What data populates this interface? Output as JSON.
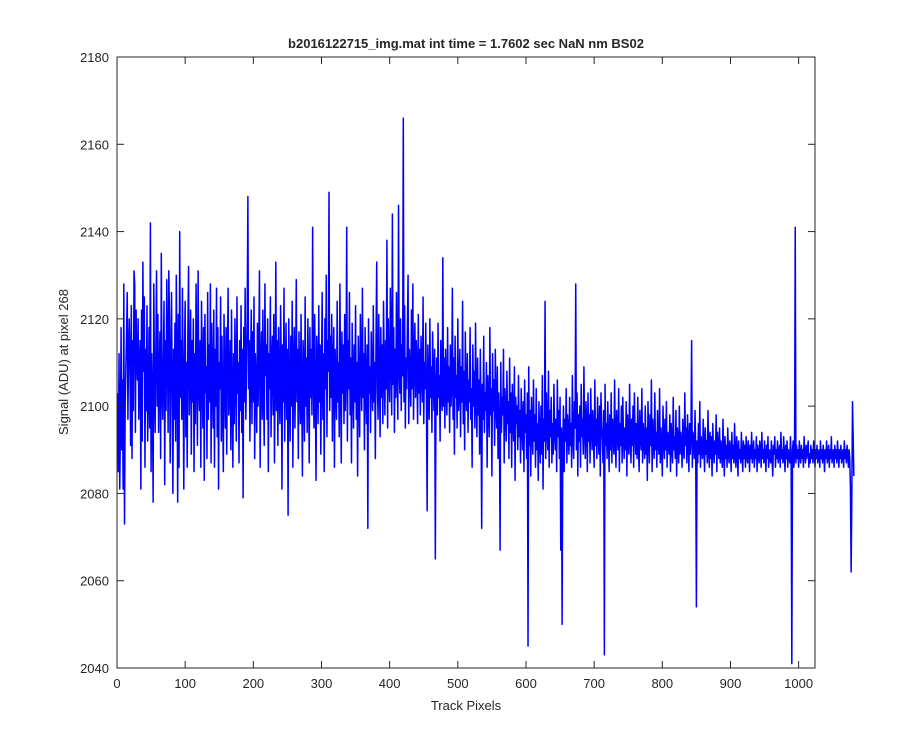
{
  "chart_data": {
    "type": "line",
    "title": "b2016122715_img.mat int time = 1.7602 sec  NaN nm BS02",
    "xlabel": "Track Pixels",
    "ylabel": "Signal (ADU) at pixel 268",
    "xlim": [
      0,
      1024
    ],
    "ylim": [
      2040,
      2180
    ],
    "xticks": [
      0,
      100,
      200,
      300,
      400,
      500,
      600,
      700,
      800,
      900,
      1000
    ],
    "yticks": [
      2040,
      2060,
      2080,
      2100,
      2120,
      2140,
      2160,
      2180
    ],
    "grid": false,
    "series_color": "#0000ff",
    "series": [
      {
        "x_start": 1,
        "x_step": 1,
        "values": [
          2103,
          2085,
          2112,
          2081,
          2095,
          2118,
          2090,
          2106,
          2081,
          2128,
          2073,
          2100,
          2109,
          2116,
          2126,
          2097,
          2112,
          2120,
          2110,
          2091,
          2123,
          2088,
          2115,
          2099,
          2131,
          2128,
          2094,
          2122,
          2111,
          2106,
          2120,
          2097,
          2110,
          2115,
          2081,
          2122,
          2092,
          2133,
          2108,
          2125,
          2086,
          2113,
          2099,
          2123,
          2092,
          2102,
          2118,
          2095,
          2142,
          2085,
          2112,
          2101,
          2078,
          2128,
          2105,
          2094,
          2113,
          2131,
          2100,
          2121,
          2094,
          2107,
          2117,
          2088,
          2135,
          2104,
          2097,
          2110,
          2124,
          2082,
          2115,
          2099,
          2129,
          2113,
          2094,
          2131,
          2120,
          2087,
          2108,
          2126,
          2103,
          2080,
          2113,
          2097,
          2119,
          2092,
          2130,
          2111,
          2078,
          2121,
          2086,
          2140,
          2102,
          2115,
          2097,
          2127,
          2106,
          2081,
          2112,
          2124,
          2093,
          2110,
          2086,
          2118,
          2132,
          2098,
          2107,
          2122,
          2089,
          2115,
          2101,
          2120,
          2085,
          2112,
          2096,
          2128,
          2110,
          2091,
          2131,
          2104,
          2099,
          2115,
          2086,
          2124,
          2108,
          2095,
          2118,
          2083,
          2121,
          2103,
          2109,
          2088,
          2126,
          2097,
          2114,
          2101,
          2128,
          2087,
          2119,
          2106,
          2095,
          2122,
          2086,
          2113,
          2100,
          2127,
          2093,
          2118,
          2081,
          2110,
          2104,
          2125,
          2092,
          2116,
          2100,
          2085,
          2121,
          2107,
          2095,
          2118,
          2089,
          2112,
          2127,
          2098,
          2104,
          2115,
          2090,
          2122,
          2101,
          2086,
          2112,
          2096,
          2120,
          2108,
          2092,
          2125,
          2103,
          2110,
          2087,
          2115,
          2099,
          2123,
          2094,
          2113,
          2079,
          2118,
          2101,
          2127,
          2097,
          2108,
          2120,
          2148,
          2104,
          2115,
          2092,
          2110,
          2122,
          2096,
          2117,
          2101,
          2125,
          2088,
          2112,
          2106,
          2094,
          2119,
          2100,
          2113,
          2131,
          2086,
          2109,
          2117,
          2097,
          2122,
          2103,
          2091,
          2128,
          2107,
          2114,
          2097,
          2120,
          2085,
          2112,
          2104,
          2125,
          2093,
          2110,
          2116,
          2098,
          2121,
          2087,
          2106,
          2133,
          2099,
          2115,
          2091,
          2118,
          2104,
          2096,
          2123,
          2110,
          2081,
          2114,
          2101,
          2127,
          2092,
          2108,
          2119,
          2097,
          2113,
          2075,
          2120,
          2104,
          2092,
          2116,
          2100,
          2124,
          2086,
          2110,
          2118,
          2095,
          2107,
          2129,
          2101,
          2113,
          2088,
          2117,
          2105,
          2096,
          2121,
          2103,
          2084,
          2115,
          2109,
          2092,
          2125,
          2100,
          2111,
          2094,
          2120,
          2106,
          2087,
          2118,
          2102,
          2113,
          2098,
          2141,
          2107,
          2095,
          2121,
          2103,
          2083,
          2116,
          2109,
          2096,
          2123,
          2101,
          2114,
          2089,
          2108,
          2126,
          2097,
          2112,
          2085,
          2120,
          2104,
          2130,
          2093,
          2115,
          2108,
          2149,
          2099,
          2116,
          2102,
          2121,
          2092,
          2109,
          2118,
          2086,
          2113,
          2105,
          2097,
          2124,
          2101,
          2110,
          2093,
          2128,
          2106,
          2087,
          2117,
          2103,
          2114,
          2096,
          2121,
          2099,
          2108,
          2141,
          2092,
          2115,
          2104,
          2126,
          2098,
          2111,
          2087,
          2119,
          2106,
          2095,
          2114,
          2101,
          2123,
          2097,
          2110,
          2084,
          2116,
          2105,
          2093,
          2121,
          2108,
          2099,
          2127,
          2102,
          2112,
          2090,
          2118,
          2104,
          2096,
          2114,
          2072,
          2120,
          2103,
          2109,
          2094,
          2117,
          2106,
          2099,
          2123,
          2101,
          2110,
          2088,
          2115,
          2133,
          2104,
          2097,
          2121,
          2107,
          2093,
          2118,
          2102,
          2114,
          2096,
          2124,
          2109,
          2098,
          2115,
          2104,
          2138,
          2095,
          2120,
          2107,
          2101,
          2127,
          2112,
          2098,
          2144,
          2105,
          2118,
          2094,
          2113,
          2102,
          2126,
          2108,
          2097,
          2146,
          2109,
          2103,
          2120,
          2099,
          2114,
          2107,
          2166,
          2101,
          2123,
          2095,
          2111,
          2104,
          2118,
          2130,
          2096,
          2113,
          2107,
          2100,
          2122,
          2104,
          2128,
          2097,
          2111,
          2119,
          2102,
          2115,
          2108,
          2096,
          2121,
          2103,
          2113,
          2098,
          2116,
          2107,
          2101,
          2125,
          2096,
          2110,
          2104,
          2119,
          2101,
          2076,
          2114,
          2105,
          2097,
          2120,
          2102,
          2109,
          2094,
          2117,
          2107,
          2099,
          2113,
          2065,
          2104,
          2111,
          2098,
          2119,
          2102,
          2107,
          2092,
          2115,
          2103,
          2099,
          2134,
          2100,
          2111,
          2095,
          2113,
          2104,
          2098,
          2118,
          2101,
          2109,
          2094,
          2114,
          2100,
          2105,
          2127,
          2097,
          2111,
          2089,
          2116,
          2102,
          2107,
          2095,
          2120,
          2099,
          2104,
          2113,
          2093,
          2109,
          2101,
          2124,
          2096,
          2108,
          2090,
          2117,
          2103,
          2099,
          2112,
          2094,
          2106,
          2101,
          2118,
          2097,
          2104,
          2086,
          2114,
          2100,
          2108,
          2095,
          2119,
          2102,
          2093,
          2111,
          2098,
          2106,
          2089,
          2113,
          2100,
          2072,
          2105,
          2097,
          2116,
          2094,
          2103,
          2099,
          2110,
          2086,
          2107,
          2101,
          2093,
          2118,
          2098,
          2104,
          2084,
          2112,
          2099,
          2106,
          2091,
          2113,
          2100,
          2095,
          2109,
          2088,
          2103,
          2097,
          2067,
          2110,
          2094,
          2102,
          2098,
          2113,
          2087,
          2104,
          2100,
          2092,
          2108,
          2096,
          2101,
          2088,
          2111,
          2094,
          2103,
          2086,
          2105,
          2097,
          2092,
          2109,
          2083,
          2102,
          2096,
          2100,
          2090,
          2107,
          2093,
          2099,
          2087,
          2104,
          2096,
          2090,
          2101,
          2085,
          2106,
          2094,
          2098,
          2088,
          2103,
          2045,
          2109,
          2091,
          2099,
          2084,
          2102,
          2095,
          2089,
          2106,
          2092,
          2098,
          2086,
          2104,
          2090,
          2096,
          2083,
          2101,
          2093,
          2087,
          2100,
          2089,
          2107,
          2081,
          2097,
          2092,
          2124,
          2088,
          2103,
          2095,
          2090,
          2108,
          2086,
          2099,
          2093,
          2102,
          2087,
          2096,
          2089,
          2105,
          2094,
          2090,
          2097,
          2085,
          2106,
          2093,
          2099,
          2088,
          2102,
          2067,
          2095,
          2050,
          2091,
          2100,
          2085,
          2097,
          2092,
          2104,
          2087,
          2098,
          2094,
          2089,
          2102,
          2091,
          2096,
          2086,
          2107,
          2093,
          2088,
          2101,
          2095,
          2128,
          2090,
          2103,
          2084,
          2098,
          2092,
          2100,
          2086,
          2105,
          2093,
          2097,
          2089,
          2109,
          2094,
          2088,
          2101,
          2096,
          2085,
          2103,
          2092,
          2098,
          2087,
          2104,
          2095,
          2090,
          2099,
          2093,
          2086,
          2106,
          2091,
          2097,
          2088,
          2102,
          2094,
          2089,
          2100,
          2084,
          2103,
          2096,
          2092,
          2087,
          2099,
          2043,
          2105,
          2091,
          2096,
          2088,
          2101,
          2093,
          2085,
          2098,
          2090,
          2103,
          2087,
          2097,
          2094,
          2089,
          2106,
          2092,
          2086,
          2099,
          2094,
          2090,
          2104,
          2085,
          2096,
          2091,
          2100,
          2087,
          2102,
          2093,
          2088,
          2095,
          2090,
          2101,
          2084,
          2098,
          2092,
          2089,
          2105,
          2093,
          2087,
          2097,
          2091,
          2100,
          2086,
          2103,
          2094,
          2089,
          2096,
          2088,
          2102,
          2091,
          2085,
          2099,
          2093,
          2090,
          2104,
          2087,
          2096,
          2092,
          2088,
          2100,
          2089,
          2095,
          2083,
          2101,
          2093,
          2087,
          2098,
          2091,
          2106,
          2085,
          2097,
          2092,
          2088,
          2103,
          2090,
          2094,
          2086,
          2099,
          2092,
          2089,
          2104,
          2087,
          2095,
          2091,
          2084,
          2100,
          2093,
          2088,
          2097,
          2090,
          2101,
          2086,
          2094,
          2092,
          2089,
          2098,
          2085,
          2096,
          2091,
          2087,
          2102,
          2090,
          2093,
          2088,
          2099,
          2084,
          2095,
          2091,
          2087,
          2100,
          2089,
          2094,
          2092,
          2086,
          2097,
          2090,
          2088,
          2103,
          2091,
          2095,
          2087,
          2098,
          2092,
          2085,
          2096,
          2089,
          2093,
          2115,
          2086,
          2094,
          2091,
          2088,
          2099,
          2090,
          2054,
          2092,
          2087,
          2096,
          2089,
          2101,
          2086,
          2093,
          2090,
          2088,
          2097,
          2091,
          2085,
          2095,
          2089,
          2092,
          2087,
          2099,
          2090,
          2086,
          2094,
          2088,
          2093,
          2084,
          2096,
          2090,
          2087,
          2092,
          2089,
          2098,
          2085,
          2094,
          2091,
          2088,
          2095,
          2087,
          2092,
          2089,
          2086,
          2097,
          2090,
          2084,
          2093,
          2088,
          2091,
          2086,
          2095,
          2089,
          2087,
          2092,
          2090,
          2085,
          2094,
          2088,
          2091,
          2087,
          2096,
          2089,
          2086,
          2093,
          2090,
          2084,
          2092,
          2088,
          2090,
          2087,
          2094,
          2089,
          2085,
          2092,
          2088,
          2091,
          2086,
          2093,
          2089,
          2087,
          2092,
          2090,
          2085,
          2091,
          2088,
          2094,
          2087,
          2089,
          2092,
          2086,
          2090,
          2088,
          2093,
          2085,
          2091,
          2089,
          2087,
          2092,
          2090,
          2086,
          2094,
          2088,
          2090,
          2087,
          2092,
          2089,
          2085,
          2091,
          2088,
          2093,
          2086,
          2090,
          2089,
          2087,
          2092,
          2088,
          2084,
          2091,
          2089,
          2093,
          2086,
          2090,
          2088,
          2092,
          2087,
          2089,
          2091,
          2086,
          2094,
          2088,
          2090,
          2087,
          2093,
          2089,
          2085,
          2091,
          2088,
          2092,
          2086,
          2090,
          2089,
          2087,
          2093,
          2088,
          2041,
          2090,
          2092,
          2086,
          2089,
          2141,
          2087,
          2091,
          2088,
          2090,
          2086,
          2092,
          2089,
          2087,
          2091,
          2088,
          2090,
          2086,
          2093,
          2089,
          2087,
          2091,
          2088,
          2090,
          2092,
          2086,
          2089,
          2087,
          2091,
          2088,
          2090,
          2087,
          2092,
          2089,
          2086,
          2090,
          2088,
          2091,
          2087,
          2089,
          2090,
          2086,
          2092,
          2088,
          2090,
          2087,
          2091,
          2089,
          2085,
          2090,
          2088,
          2092,
          2087,
          2089,
          2091,
          2086,
          2090,
          2088,
          2093,
          2087,
          2089,
          2090,
          2086,
          2091,
          2088,
          2090,
          2087,
          2092,
          2089,
          2086,
          2090,
          2088,
          2091,
          2087,
          2089,
          2090,
          2086,
          2092,
          2088,
          2090,
          2087,
          2091,
          2089,
          2086,
          2090,
          2088,
          2081,
          2062,
          2079,
          2101,
          2093,
          2084
        ]
      }
    ]
  }
}
